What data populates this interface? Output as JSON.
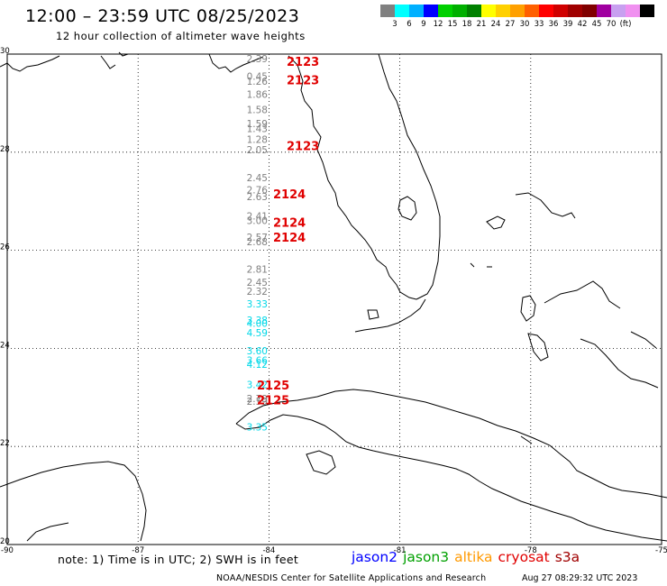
{
  "header": {
    "title": "12:00 – 23:59 UTC 08/25/2023",
    "subtitle": "12 hour collection of altimeter wave heights"
  },
  "colorbar": {
    "unit": "(ft)",
    "colors": [
      "#808080",
      "#00ffff",
      "#00b0ff",
      "#0000ff",
      "#00d000",
      "#00b000",
      "#008000",
      "#ffff00",
      "#ffd000",
      "#ffa000",
      "#ff6000",
      "#ff0000",
      "#d00000",
      "#a00000",
      "#800000",
      "#a000a0",
      "#c8a0f0",
      "#f090f0",
      "#000000"
    ],
    "labels": [
      "3",
      "6",
      "9",
      "12",
      "15",
      "18",
      "21",
      "24",
      "27",
      "30",
      "33",
      "36",
      "39",
      "42",
      "45",
      "70"
    ]
  },
  "axes": {
    "x_ticks": [
      "-90",
      "-87",
      "-84",
      "-81",
      "-78",
      "-75"
    ],
    "y_ticks": [
      "30",
      "28",
      "26",
      "24",
      "22",
      "20"
    ]
  },
  "observations": [
    {
      "v": "2.39",
      "lat": 29.91,
      "c": "#808080"
    },
    {
      "v": "0.45",
      "lat": 29.55,
      "c": "#808080"
    },
    {
      "v": "1.26",
      "lat": 29.45,
      "c": "#808080"
    },
    {
      "v": "1.86",
      "lat": 29.18,
      "c": "#808080"
    },
    {
      "v": "1.58",
      "lat": 28.87,
      "c": "#808080"
    },
    {
      "v": "1.59",
      "lat": 28.58,
      "c": "#808080"
    },
    {
      "v": "1.43",
      "lat": 28.48,
      "c": "#808080"
    },
    {
      "v": "1.28",
      "lat": 28.26,
      "c": "#808080"
    },
    {
      "v": "2.05",
      "lat": 28.05,
      "c": "#808080"
    },
    {
      "v": "2.45",
      "lat": 27.48,
      "c": "#808080"
    },
    {
      "v": "2.76",
      "lat": 27.23,
      "c": "#808080"
    },
    {
      "v": "2.63",
      "lat": 27.1,
      "c": "#808080"
    },
    {
      "v": "2.41",
      "lat": 26.7,
      "c": "#808080"
    },
    {
      "v": "3.00",
      "lat": 26.61,
      "c": "#808080"
    },
    {
      "v": "2.57",
      "lat": 26.27,
      "c": "#808080"
    },
    {
      "v": "2.68",
      "lat": 26.18,
      "c": "#808080"
    },
    {
      "v": "2.81",
      "lat": 25.62,
      "c": "#808080"
    },
    {
      "v": "2.45",
      "lat": 25.35,
      "c": "#808080"
    },
    {
      "v": "2.32",
      "lat": 25.17,
      "c": "#808080"
    },
    {
      "v": "3.33",
      "lat": 24.91,
      "c": "#00d8e8"
    },
    {
      "v": "3.38",
      "lat": 24.58,
      "c": "#00d8e8"
    },
    {
      "v": "4.00",
      "lat": 24.51,
      "c": "#00d8e8"
    },
    {
      "v": "4.59",
      "lat": 24.32,
      "c": "#00d8e8"
    },
    {
      "v": "3.60",
      "lat": 23.95,
      "c": "#00d8e8"
    },
    {
      "v": "3.66",
      "lat": 23.76,
      "c": "#00d8e8"
    },
    {
      "v": "4.12",
      "lat": 23.68,
      "c": "#00d8e8"
    },
    {
      "v": "3.42",
      "lat": 23.26,
      "c": "#00d8e8"
    },
    {
      "v": "2.79",
      "lat": 22.98,
      "c": "#808080"
    },
    {
      "v": "2.59",
      "lat": 22.92,
      "c": "#808080"
    },
    {
      "v": "3.35",
      "lat": 22.4,
      "c": "#00d8e8"
    }
  ],
  "passes": [
    {
      "id": "2123",
      "lat": 29.85
    },
    {
      "id": "2123",
      "lat": 29.48
    },
    {
      "id": "2123",
      "lat": 28.13
    },
    {
      "id": "2124",
      "lat": 27.15
    },
    {
      "id": "2124",
      "lat": 26.57
    },
    {
      "id": "2124",
      "lat": 26.27
    },
    {
      "id": "2125",
      "lat": 23.25
    },
    {
      "id": "2125",
      "lat": 22.95
    }
  ],
  "footer": {
    "note": "note:  1) Time is in UTC;  2) SWH is in feet",
    "satellites": [
      {
        "name": "jason2",
        "color": "#0000ff"
      },
      {
        "name": "jason3",
        "color": "#00a000"
      },
      {
        "name": "altika",
        "color": "#ff9900"
      },
      {
        "name": "cryosat",
        "color": "#e00000"
      },
      {
        "name": "s3a",
        "color": "#a00000"
      }
    ],
    "credit": "NOAA/NESDIS Center for Satellite Applications and Research",
    "timestamp": "Aug 27 08:29:32 UTC 2023"
  }
}
